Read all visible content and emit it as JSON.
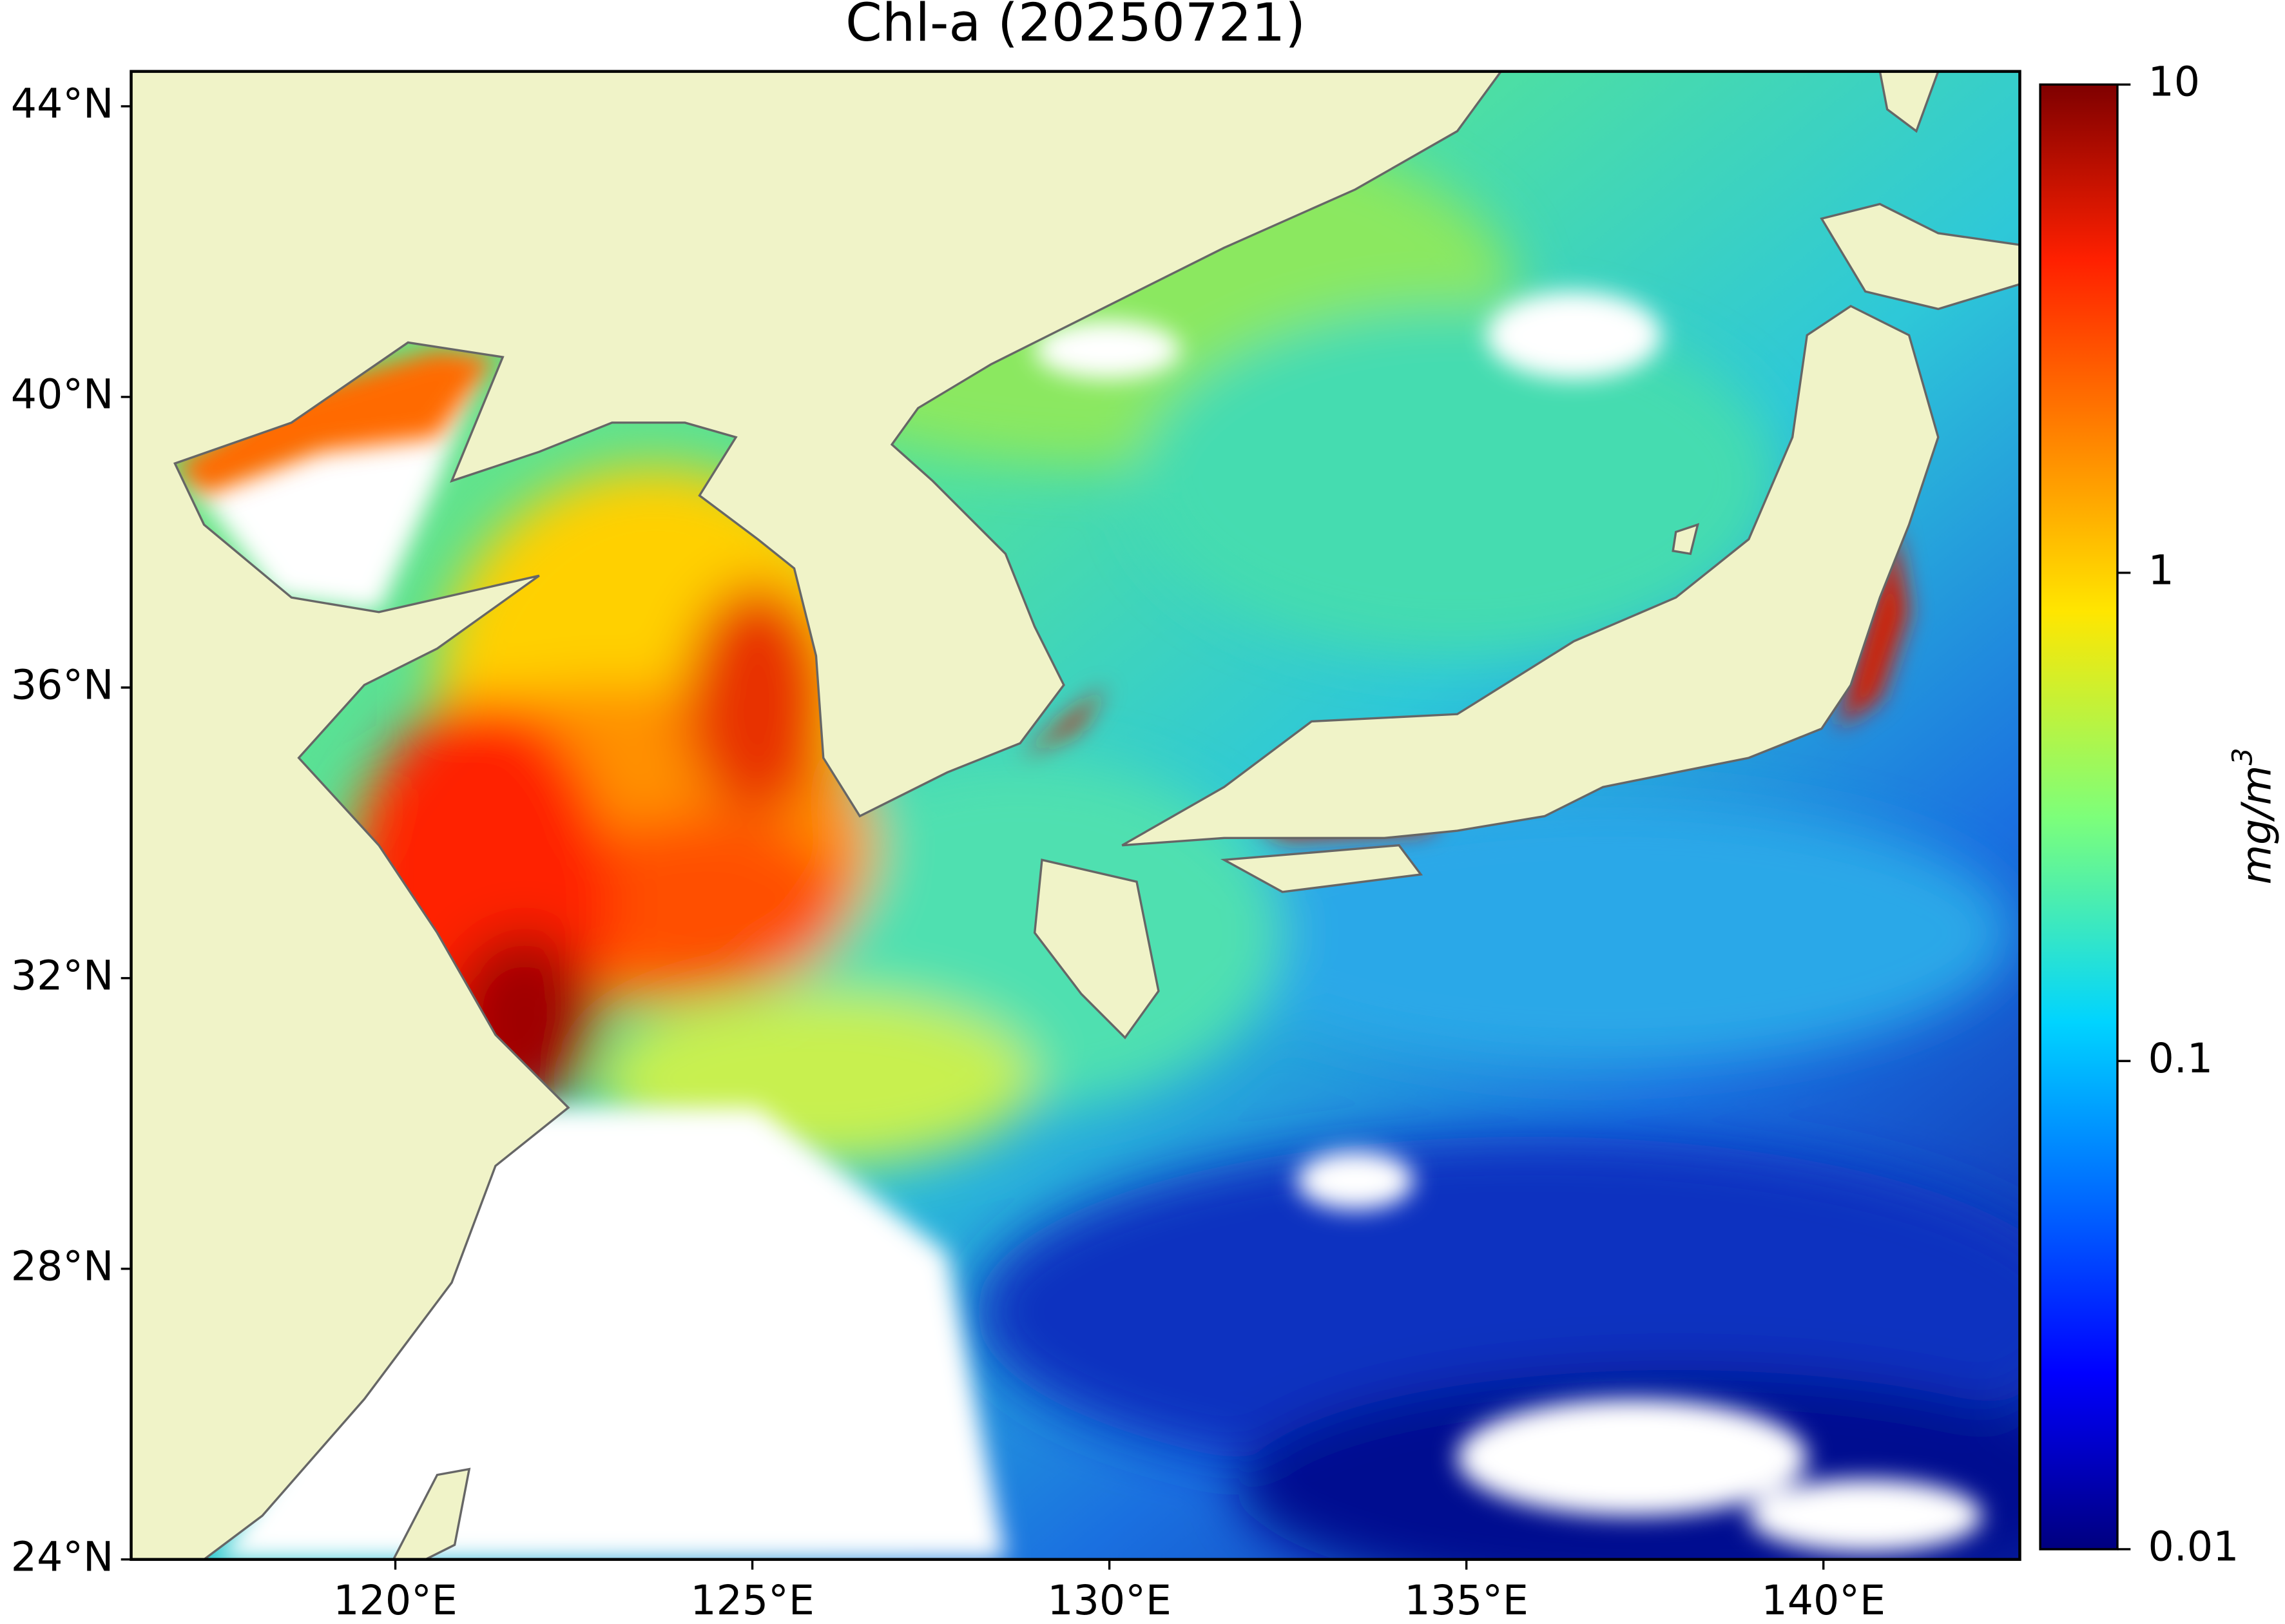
{
  "map": {
    "title": "Chl-a (20250721)",
    "xlim": [
      116.3,
      142.75
    ],
    "ylim": [
      24,
      44.48
    ],
    "xticks": [
      {
        "value": 120,
        "label": "120°E"
      },
      {
        "value": 125,
        "label": "125°E"
      },
      {
        "value": 130,
        "label": "130°E"
      },
      {
        "value": 135,
        "label": "135°E"
      },
      {
        "value": 140,
        "label": "140°E"
      }
    ],
    "yticks": [
      {
        "value": 24,
        "label": "24°N"
      },
      {
        "value": 28,
        "label": "28°N"
      },
      {
        "value": 32,
        "label": "32°N"
      },
      {
        "value": 36,
        "label": "36°N"
      },
      {
        "value": 40,
        "label": "40°N"
      },
      {
        "value": 44,
        "label": "44°N"
      }
    ],
    "colorbar": {
      "scale": "log",
      "lim": [
        0.01,
        10
      ],
      "ticks": [
        0.01,
        0.1,
        1,
        10
      ],
      "label": {
        "base": "mg/m",
        "exponent": "3"
      }
    }
  }
}
